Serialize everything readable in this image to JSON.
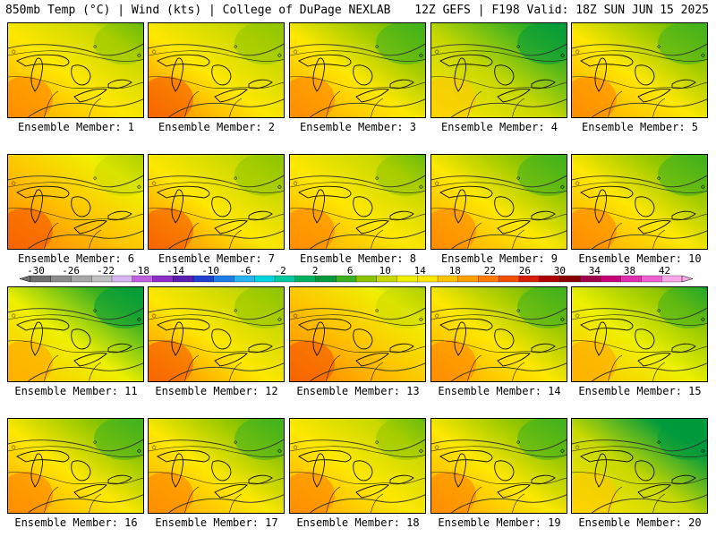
{
  "header": {
    "title": "850mb Temp (°C) | Wind (kts) | College of DuPage NEXLAB",
    "valid": "12Z GEFS | F198 Valid: 18Z SUN JUN 15 2025"
  },
  "colorbar": {
    "tick_labels": [
      "-30",
      "-26",
      "-22",
      "-18",
      "-14",
      "-10",
      "-6",
      "-2",
      "2",
      "6",
      "10",
      "14",
      "18",
      "22",
      "26",
      "30",
      "34",
      "38",
      "42"
    ],
    "colors": [
      "#6f6f6f",
      "#8c8c8c",
      "#a8a8a8",
      "#c0c0c0",
      "#d8b4f0",
      "#c060e0",
      "#8e2cc8",
      "#5a1fb0",
      "#2040d0",
      "#1e7fe8",
      "#29b3f0",
      "#00d6e0",
      "#00c8a0",
      "#00b060",
      "#009a3c",
      "#3cb021",
      "#8cc400",
      "#c8d800",
      "#eef000",
      "#ffe800",
      "#ffc400",
      "#ffa000",
      "#ff7c00",
      "#f24f00",
      "#d81e00",
      "#b00000",
      "#8a0000",
      "#a0004a",
      "#c8007a",
      "#e030b0",
      "#f060d0",
      "#f8a8e8"
    ]
  },
  "members": [
    {
      "caption": "Ensemble Member: 1",
      "warm": 0.55
    },
    {
      "caption": "Ensemble Member: 2",
      "warm": 0.6
    },
    {
      "caption": "Ensemble Member: 3",
      "warm": 0.5
    },
    {
      "caption": "Ensemble Member: 4",
      "warm": 0.35
    },
    {
      "caption": "Ensemble Member: 5",
      "warm": 0.5
    },
    {
      "caption": "Ensemble Member: 6",
      "warm": 0.65
    },
    {
      "caption": "Ensemble Member: 7",
      "warm": 0.6
    },
    {
      "caption": "Ensemble Member: 8",
      "warm": 0.55
    },
    {
      "caption": "Ensemble Member: 9",
      "warm": 0.5
    },
    {
      "caption": "Ensemble Member: 10",
      "warm": 0.5
    },
    {
      "caption": "Ensemble Member: 11",
      "warm": 0.4
    },
    {
      "caption": "Ensemble Member: 12",
      "warm": 0.6
    },
    {
      "caption": "Ensemble Member: 13",
      "warm": 0.65
    },
    {
      "caption": "Ensemble Member: 14",
      "warm": 0.5
    },
    {
      "caption": "Ensemble Member: 15",
      "warm": 0.45
    },
    {
      "caption": "Ensemble Member: 16",
      "warm": 0.5
    },
    {
      "caption": "Ensemble Member: 17",
      "warm": 0.5
    },
    {
      "caption": "Ensemble Member: 18",
      "warm": 0.55
    },
    {
      "caption": "Ensemble Member: 19",
      "warm": 0.5
    },
    {
      "caption": "Ensemble Member: 20",
      "warm": 0.3
    }
  ]
}
